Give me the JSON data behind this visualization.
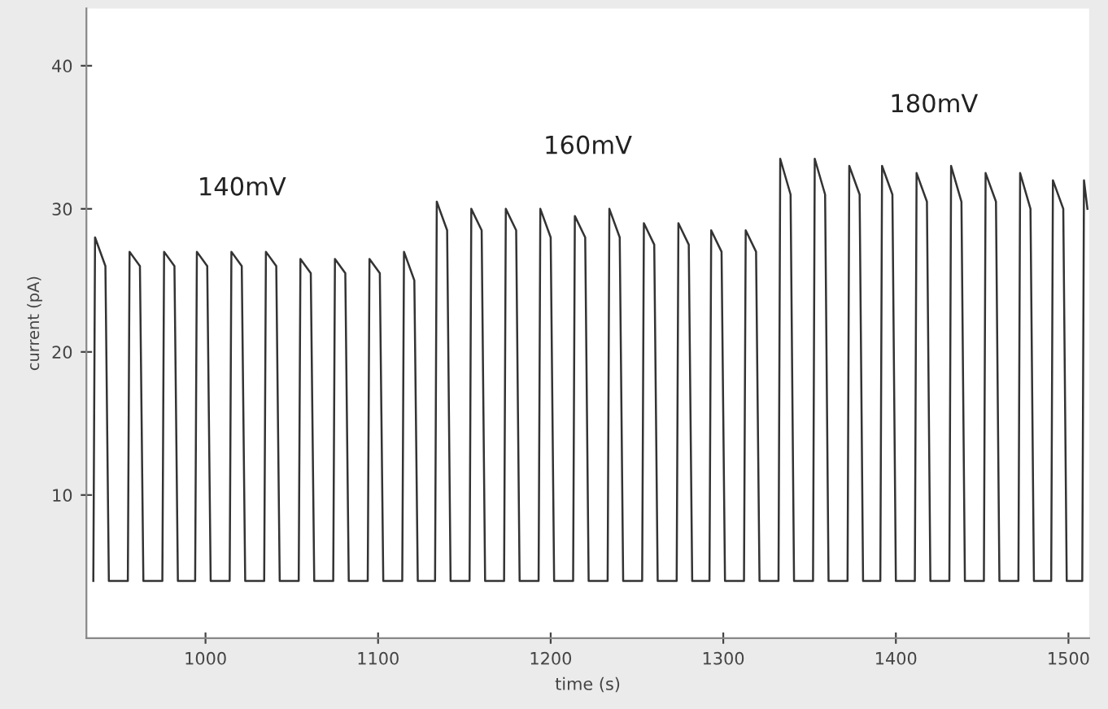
{
  "chart_data": {
    "type": "line",
    "xlabel": "time (s)",
    "ylabel": "current (pA)",
    "xlim": [
      931,
      1512
    ],
    "ylim": [
      0,
      44
    ],
    "xticks": [
      1000,
      1100,
      1200,
      1300,
      1400,
      1500
    ],
    "yticks": [
      10,
      20,
      30,
      40
    ],
    "grid": false,
    "legend": false,
    "marker": "none",
    "line_style": "solid",
    "annotations": [
      "140mV",
      "160mV",
      "180mV"
    ],
    "series": [
      {
        "color": "#333333",
        "x": [
          935,
          936,
          942,
          944,
          955,
          956,
          962,
          964,
          975,
          976,
          982,
          984,
          994,
          995,
          1001,
          1003,
          1014,
          1015,
          1021,
          1023,
          1034,
          1035,
          1041,
          1043,
          1054,
          1055,
          1061,
          1063,
          1074,
          1075,
          1081,
          1083,
          1094,
          1095,
          1101,
          1103,
          1114,
          1115,
          1121,
          1123,
          1133,
          1134,
          1140,
          1142,
          1153,
          1154,
          1160,
          1162,
          1173,
          1174,
          1180,
          1182,
          1193,
          1194,
          1200,
          1202,
          1213,
          1214,
          1220,
          1222,
          1233,
          1234,
          1240,
          1242,
          1253,
          1254,
          1260,
          1262,
          1273,
          1274,
          1280,
          1282,
          1292,
          1293,
          1299,
          1301,
          1312,
          1313,
          1319,
          1321,
          1332,
          1333,
          1339,
          1341,
          1352,
          1353,
          1359,
          1361,
          1372,
          1373,
          1379,
          1381,
          1391,
          1392,
          1398,
          1400,
          1411,
          1412,
          1418,
          1420,
          1431,
          1432,
          1438,
          1440,
          1451,
          1452,
          1458,
          1460,
          1471,
          1472,
          1478,
          1480,
          1490,
          1491,
          1497,
          1499,
          1508,
          1509,
          1511
        ],
        "values": [
          4,
          28,
          26,
          4,
          4,
          27,
          26,
          4,
          4,
          27,
          26,
          4,
          4,
          27,
          26,
          4,
          4,
          27,
          26,
          4,
          4,
          27,
          26,
          4,
          4,
          26.5,
          25.5,
          4,
          4,
          26.5,
          25.5,
          4,
          4,
          26.5,
          25.5,
          4,
          4,
          27,
          25,
          4,
          4,
          30.5,
          28.5,
          4,
          4,
          30,
          28.5,
          4,
          4,
          30,
          28.5,
          4,
          4,
          30,
          28,
          4,
          4,
          29.5,
          28,
          4,
          4,
          30,
          28,
          4,
          4,
          29,
          27.5,
          4,
          4,
          29,
          27.5,
          4,
          4,
          28.5,
          27,
          4,
          4,
          28.5,
          27,
          4,
          4,
          33.5,
          31,
          4,
          4,
          33.5,
          31,
          4,
          4,
          33,
          31,
          4,
          4,
          33,
          31,
          4,
          4,
          32.5,
          30.5,
          4,
          4,
          33,
          30.5,
          4,
          4,
          32.5,
          30.5,
          4,
          4,
          32.5,
          30,
          4,
          4,
          32,
          30,
          4,
          4,
          32,
          30
        ]
      }
    ]
  }
}
